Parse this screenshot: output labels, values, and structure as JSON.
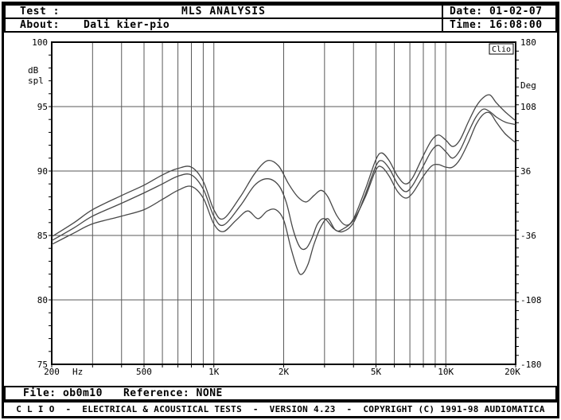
{
  "colors": {
    "background": "#ffffff",
    "frame": "#000000",
    "grid": "#5a5a5a",
    "axis": "#000000",
    "curve": "#474747"
  },
  "header": {
    "test_label": "Test :",
    "title": "MLS ANALYSIS",
    "date_label": "Date:",
    "date_value": "01-02-07",
    "about_label": "About:",
    "about_value": "Dali kier-pio",
    "time_label": "Time:",
    "time_value": "16:08:00"
  },
  "chart_data": {
    "type": "line",
    "title": "MLS ANALYSIS",
    "watermark": "Clio",
    "x_axis": {
      "unit": "Hz",
      "scale": "log",
      "min": 200,
      "max": 20000,
      "tick_values": [
        200,
        500,
        1000,
        2000,
        5000,
        10000,
        20000
      ],
      "tick_labels": [
        "200",
        "500",
        "1K",
        "2K",
        "5K",
        "10K",
        "20K"
      ],
      "grid_values": [
        300,
        400,
        500,
        600,
        700,
        800,
        900,
        1000,
        2000,
        3000,
        4000,
        5000,
        6000,
        7000,
        8000,
        9000,
        10000
      ]
    },
    "y_left": {
      "label_line1": "dB",
      "label_line2": "spl",
      "min": 75,
      "max": 100,
      "tick_values": [
        100,
        95,
        90,
        85,
        80,
        75
      ],
      "grid_values": [
        95,
        90,
        85,
        80
      ],
      "minor_step": 1
    },
    "y_right": {
      "label": "Deg",
      "min": -180,
      "max": 180,
      "tick_values": [
        180,
        108,
        36,
        -36,
        -108,
        -180
      ],
      "minor_step": 10
    },
    "series": [
      {
        "name": "curve-1",
        "points": [
          [
            200,
            84.9
          ],
          [
            250,
            86.0
          ],
          [
            300,
            87.0
          ],
          [
            400,
            88.1
          ],
          [
            500,
            88.9
          ],
          [
            600,
            89.7
          ],
          [
            700,
            90.2
          ],
          [
            800,
            90.3
          ],
          [
            900,
            89.2
          ],
          [
            1000,
            87.0
          ],
          [
            1100,
            86.3
          ],
          [
            1300,
            88.0
          ],
          [
            1500,
            89.8
          ],
          [
            1700,
            90.8
          ],
          [
            1900,
            90.4
          ],
          [
            2100,
            89.0
          ],
          [
            2300,
            88.0
          ],
          [
            2500,
            87.6
          ],
          [
            2700,
            88.1
          ],
          [
            2900,
            88.5
          ],
          [
            3100,
            88.0
          ],
          [
            3400,
            86.5
          ],
          [
            3700,
            85.8
          ],
          [
            4000,
            86.3
          ],
          [
            4500,
            88.6
          ],
          [
            5000,
            90.9
          ],
          [
            5300,
            91.4
          ],
          [
            5700,
            90.8
          ],
          [
            6200,
            89.6
          ],
          [
            6700,
            89.0
          ],
          [
            7200,
            89.5
          ],
          [
            8000,
            91.2
          ],
          [
            8700,
            92.4
          ],
          [
            9300,
            92.8
          ],
          [
            10000,
            92.4
          ],
          [
            10700,
            91.9
          ],
          [
            11500,
            92.4
          ],
          [
            12500,
            93.8
          ],
          [
            13500,
            95.0
          ],
          [
            14500,
            95.7
          ],
          [
            15500,
            95.9
          ],
          [
            16500,
            95.3
          ],
          [
            18000,
            94.6
          ],
          [
            20000,
            93.9
          ]
        ]
      },
      {
        "name": "curve-2",
        "points": [
          [
            200,
            84.6
          ],
          [
            250,
            85.6
          ],
          [
            300,
            86.5
          ],
          [
            400,
            87.5
          ],
          [
            500,
            88.3
          ],
          [
            600,
            89.0
          ],
          [
            700,
            89.6
          ],
          [
            800,
            89.7
          ],
          [
            900,
            88.6
          ],
          [
            1000,
            86.5
          ],
          [
            1100,
            85.8
          ],
          [
            1300,
            87.3
          ],
          [
            1500,
            88.9
          ],
          [
            1700,
            89.4
          ],
          [
            1900,
            88.9
          ],
          [
            2050,
            87.6
          ],
          [
            2200,
            85.4
          ],
          [
            2350,
            84.1
          ],
          [
            2500,
            84.0
          ],
          [
            2650,
            84.8
          ],
          [
            2800,
            85.9
          ],
          [
            3000,
            86.3
          ],
          [
            3300,
            85.5
          ],
          [
            3600,
            85.3
          ],
          [
            4000,
            86.0
          ],
          [
            4500,
            88.2
          ],
          [
            5000,
            90.4
          ],
          [
            5300,
            90.8
          ],
          [
            5700,
            90.2
          ],
          [
            6200,
            89.0
          ],
          [
            6700,
            88.4
          ],
          [
            7200,
            88.9
          ],
          [
            8000,
            90.4
          ],
          [
            8700,
            91.6
          ],
          [
            9300,
            92.0
          ],
          [
            10000,
            91.5
          ],
          [
            10700,
            91.0
          ],
          [
            11500,
            91.6
          ],
          [
            12500,
            93.0
          ],
          [
            13500,
            94.2
          ],
          [
            14500,
            94.8
          ],
          [
            15500,
            94.6
          ],
          [
            16500,
            94.2
          ],
          [
            18000,
            93.8
          ],
          [
            20000,
            93.6
          ]
        ]
      },
      {
        "name": "curve-3",
        "points": [
          [
            200,
            84.3
          ],
          [
            250,
            85.2
          ],
          [
            300,
            85.9
          ],
          [
            400,
            86.5
          ],
          [
            500,
            87.0
          ],
          [
            600,
            87.8
          ],
          [
            700,
            88.5
          ],
          [
            800,
            88.8
          ],
          [
            900,
            87.9
          ],
          [
            1000,
            85.9
          ],
          [
            1100,
            85.3
          ],
          [
            1250,
            86.2
          ],
          [
            1400,
            86.9
          ],
          [
            1550,
            86.3
          ],
          [
            1700,
            86.9
          ],
          [
            1850,
            87.0
          ],
          [
            2000,
            86.2
          ],
          [
            2150,
            84.0
          ],
          [
            2300,
            82.3
          ],
          [
            2400,
            82.0
          ],
          [
            2550,
            82.8
          ],
          [
            2700,
            84.3
          ],
          [
            2900,
            85.7
          ],
          [
            3100,
            86.3
          ],
          [
            3350,
            85.4
          ],
          [
            3600,
            85.5
          ],
          [
            4000,
            86.2
          ],
          [
            4500,
            88.0
          ],
          [
            5000,
            90.1
          ],
          [
            5300,
            90.3
          ],
          [
            5700,
            89.6
          ],
          [
            6200,
            88.4
          ],
          [
            6700,
            87.9
          ],
          [
            7200,
            88.3
          ],
          [
            8000,
            89.6
          ],
          [
            8700,
            90.4
          ],
          [
            9300,
            90.5
          ],
          [
            10000,
            90.3
          ],
          [
            10700,
            90.3
          ],
          [
            11500,
            90.9
          ],
          [
            12500,
            92.2
          ],
          [
            13500,
            93.6
          ],
          [
            14500,
            94.4
          ],
          [
            15500,
            94.5
          ],
          [
            16500,
            93.8
          ],
          [
            18000,
            92.9
          ],
          [
            20000,
            92.2
          ]
        ]
      }
    ]
  },
  "footer": {
    "file_label": "File:",
    "file_value": "ob0m10",
    "reference_label": "Reference:",
    "reference_value": "NONE",
    "credit": "C L I O  -  ELECTRICAL & ACOUSTICAL TESTS  -  VERSION 4.23  -  COPYRIGHT (C) 1991-98 AUDIOMATICA"
  }
}
